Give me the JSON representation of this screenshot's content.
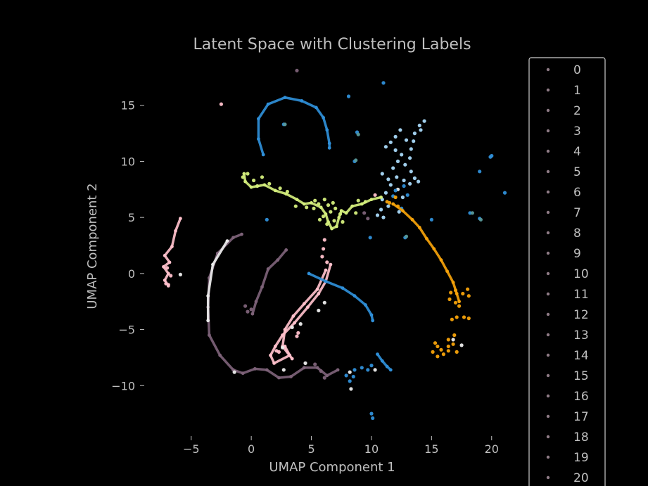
{
  "colors": {
    "background": "#000000",
    "text": "#bfbfbf",
    "axis": "#bfbfbf",
    "legend_border": "#cccccc",
    "legend_marker": "#8f7b86",
    "cluster_pink": "#ffc0cb",
    "cluster_mauve": "#7d6278",
    "cluster_blue": "#2f8fd8",
    "cluster_lightblue": "#a8d8f8",
    "cluster_lime": "#d4ee7c",
    "cluster_orange": "#f5a20a",
    "cluster_white": "#ececec",
    "cluster_teal": "#5a9a9a"
  },
  "chart_data": {
    "type": "scatter",
    "title": "Latent Space with Clustering Labels",
    "xlabel": "UMAP Component 1",
    "ylabel": "UMAP Component 2",
    "xlim": [
      -9.2,
      23
    ],
    "ylim": [
      -14.5,
      19.5
    ],
    "xticks": [
      -5,
      0,
      5,
      10,
      15,
      20
    ],
    "yticks": [
      -10,
      -5,
      0,
      5,
      10,
      15
    ],
    "xtick_labels": [
      "−5",
      "0",
      "5",
      "10",
      "15",
      "20"
    ],
    "ytick_labels": [
      "−10",
      "−5",
      "0",
      "5",
      "10",
      "15"
    ],
    "grid": false,
    "legend_position": "right",
    "legend": [
      "0",
      "1",
      "2",
      "3",
      "4",
      "5",
      "6",
      "7",
      "8",
      "9",
      "10",
      "11",
      "12",
      "13",
      "14",
      "15",
      "16",
      "17",
      "18",
      "19",
      "20"
    ],
    "series": [
      {
        "color": "cluster_pink",
        "kind": "curve",
        "points": [
          [
            -5.9,
            4.9
          ],
          [
            -6.3,
            3.8
          ],
          [
            -6.6,
            2.4
          ],
          [
            -7.2,
            1.6
          ],
          [
            -6.8,
            1.0
          ],
          [
            -7.3,
            0.6
          ],
          [
            -6.9,
            0.0
          ],
          [
            -7.2,
            -0.6
          ],
          [
            -6.9,
            -1.1
          ]
        ]
      },
      {
        "color": "cluster_pink",
        "kind": "dots",
        "points": [
          [
            -2.5,
            15.1
          ],
          [
            -7.0,
            0.5
          ],
          [
            -6.7,
            -0.2
          ],
          [
            -7.1,
            -0.9
          ],
          [
            -6.9,
            -1.0
          ]
        ]
      },
      {
        "color": "cluster_pink",
        "kind": "curve",
        "points": [
          [
            6.6,
            0.8
          ],
          [
            6.2,
            -0.7
          ],
          [
            5.6,
            -1.8
          ],
          [
            4.7,
            -3.0
          ],
          [
            3.6,
            -4.4
          ],
          [
            2.6,
            -5.5
          ],
          [
            2.0,
            -6.5
          ],
          [
            1.6,
            -7.3
          ],
          [
            1.9,
            -8.0
          ],
          [
            3.2,
            -7.3
          ],
          [
            2.8,
            -6.5
          ]
        ]
      },
      {
        "color": "cluster_pink",
        "kind": "curve",
        "points": [
          [
            6.2,
            0.3
          ],
          [
            5.5,
            -1.4
          ],
          [
            4.4,
            -2.7
          ],
          [
            3.5,
            -3.8
          ],
          [
            2.8,
            -5.0
          ],
          [
            2.6,
            -6.5
          ],
          [
            3.4,
            -7.6
          ]
        ]
      },
      {
        "color": "cluster_pink",
        "kind": "dots",
        "points": [
          [
            6.1,
            3.0
          ],
          [
            6.0,
            2.2
          ],
          [
            5.9,
            1.5
          ],
          [
            3.8,
            -5.6
          ],
          [
            3.9,
            -5.3
          ],
          [
            2.1,
            -6.9
          ],
          [
            2.3,
            -7.0
          ],
          [
            6.3,
            1.0
          ],
          [
            10.3,
            7.0
          ]
        ]
      },
      {
        "color": "cluster_mauve",
        "kind": "curve",
        "points": [
          [
            -0.8,
            3.5
          ],
          [
            -1.5,
            3.2
          ],
          [
            -2.8,
            1.8
          ],
          [
            -3.5,
            -0.4
          ],
          [
            -3.6,
            -3.0
          ],
          [
            -3.5,
            -5.5
          ],
          [
            -2.6,
            -7.3
          ],
          [
            -1.5,
            -8.6
          ],
          [
            -0.7,
            -8.9
          ],
          [
            0.3,
            -8.5
          ],
          [
            1.3,
            -8.6
          ],
          [
            2.3,
            -9.3
          ],
          [
            3.3,
            -9.2
          ],
          [
            4.4,
            -8.4
          ],
          [
            5.5,
            -8.4
          ],
          [
            6.3,
            -9.1
          ],
          [
            7.2,
            -8.6
          ]
        ]
      },
      {
        "color": "cluster_mauve",
        "kind": "curve",
        "points": [
          [
            2.9,
            2.1
          ],
          [
            2.2,
            1.2
          ],
          [
            1.4,
            0.4
          ],
          [
            0.9,
            -1.2
          ],
          [
            0.4,
            -2.5
          ],
          [
            0.1,
            -3.6
          ]
        ]
      },
      {
        "color": "cluster_mauve",
        "kind": "dots",
        "points": [
          [
            -0.5,
            -2.9
          ],
          [
            0.0,
            -3.2
          ],
          [
            -0.3,
            -3.4
          ],
          [
            3.8,
            18.1
          ],
          [
            9.4,
            5.4
          ],
          [
            9.7,
            4.9
          ],
          [
            5.8,
            -8.7
          ],
          [
            6.1,
            -9.3
          ],
          [
            5.3,
            -8.1
          ]
        ]
      },
      {
        "color": "cluster_white",
        "kind": "curve",
        "points": [
          [
            -2.0,
            2.9
          ],
          [
            -3.2,
            0.8
          ],
          [
            -3.6,
            -2.0
          ],
          [
            -3.6,
            -4.2
          ]
        ]
      },
      {
        "color": "cluster_white",
        "kind": "dots",
        "points": [
          [
            6.1,
            -2.6
          ],
          [
            5.6,
            -3.3
          ],
          [
            4.1,
            -4.5
          ],
          [
            3.4,
            -4.8
          ],
          [
            2.6,
            -6.6
          ],
          [
            2.7,
            -8.6
          ],
          [
            -1.4,
            -8.8
          ],
          [
            4.5,
            -8.0
          ],
          [
            8.2,
            -8.8
          ],
          [
            8.3,
            -10.3
          ],
          [
            10.3,
            -8.6
          ],
          [
            16.8,
            -5.9
          ],
          [
            17.5,
            -6.4
          ],
          [
            12.2,
            7.5
          ],
          [
            -5.9,
            -0.1
          ]
        ]
      },
      {
        "color": "cluster_blue",
        "kind": "curve",
        "points": [
          [
            1.0,
            10.6
          ],
          [
            0.6,
            12.0
          ],
          [
            0.6,
            13.8
          ],
          [
            1.4,
            15.1
          ],
          [
            2.8,
            15.7
          ],
          [
            4.2,
            15.4
          ],
          [
            5.4,
            14.8
          ],
          [
            6.0,
            13.9
          ],
          [
            6.3,
            12.8
          ],
          [
            6.5,
            11.6
          ],
          [
            6.5,
            11.2
          ]
        ]
      },
      {
        "color": "cluster_blue",
        "kind": "curve",
        "points": [
          [
            4.8,
            0.0
          ],
          [
            6.2,
            -0.7
          ],
          [
            7.6,
            -1.3
          ],
          [
            8.6,
            -2.0
          ],
          [
            9.5,
            -2.8
          ],
          [
            10.0,
            -3.7
          ],
          [
            10.1,
            -4.2
          ]
        ]
      },
      {
        "color": "cluster_blue",
        "kind": "curve",
        "points": [
          [
            10.5,
            -7.2
          ],
          [
            10.9,
            -7.8
          ],
          [
            11.3,
            -8.3
          ],
          [
            11.6,
            -8.6
          ]
        ]
      },
      {
        "color": "cluster_blue",
        "kind": "dots",
        "points": [
          [
            7.9,
            -9.1
          ],
          [
            8.2,
            -9.6
          ],
          [
            8.5,
            -9.2
          ],
          [
            8.6,
            -8.6
          ],
          [
            9.2,
            -8.4
          ],
          [
            9.7,
            -8.6
          ],
          [
            10.0,
            -8.2
          ],
          [
            10.0,
            -12.5
          ],
          [
            10.1,
            -12.9
          ],
          [
            1.3,
            4.8
          ],
          [
            2.7,
            13.3
          ],
          [
            8.1,
            15.8
          ],
          [
            11.0,
            17.0
          ],
          [
            8.8,
            12.6
          ],
          [
            9.9,
            3.2
          ],
          [
            12.7,
            7.8
          ],
          [
            12.0,
            7.4
          ],
          [
            12.5,
            5.8
          ],
          [
            13.0,
            7.0
          ],
          [
            15.0,
            4.8
          ],
          [
            18.2,
            5.4
          ],
          [
            19.0,
            4.9
          ],
          [
            19.0,
            9.1
          ],
          [
            19.9,
            10.4
          ],
          [
            20.0,
            10.5
          ],
          [
            21.1,
            7.2
          ],
          [
            8.6,
            10.0
          ],
          [
            11.8,
            6.9
          ],
          [
            12.8,
            3.2
          ]
        ]
      },
      {
        "color": "cluster_lightblue",
        "kind": "dots",
        "points": [
          [
            11.6,
            11.7
          ],
          [
            11.2,
            11.3
          ],
          [
            12.0,
            11.0
          ],
          [
            12.5,
            10.6
          ],
          [
            12.2,
            10.0
          ],
          [
            12.8,
            9.7
          ],
          [
            13.2,
            10.3
          ],
          [
            13.3,
            11.1
          ],
          [
            12.9,
            11.9
          ],
          [
            13.6,
            12.5
          ],
          [
            14.0,
            13.2
          ],
          [
            14.1,
            12.8
          ],
          [
            13.5,
            11.8
          ],
          [
            11.8,
            9.4
          ],
          [
            12.1,
            8.6
          ],
          [
            12.7,
            8.3
          ],
          [
            13.2,
            8.0
          ],
          [
            13.6,
            8.5
          ],
          [
            13.3,
            9.1
          ],
          [
            11.6,
            7.9
          ],
          [
            11.2,
            7.2
          ],
          [
            10.9,
            6.6
          ],
          [
            11.4,
            6.0
          ],
          [
            10.8,
            5.7
          ],
          [
            10.5,
            5.2
          ],
          [
            11.0,
            5.0
          ],
          [
            12.3,
            5.5
          ],
          [
            12.6,
            6.8
          ],
          [
            12.0,
            12.2
          ],
          [
            12.4,
            12.8
          ],
          [
            14.4,
            13.6
          ],
          [
            11.4,
            8.4
          ],
          [
            10.9,
            8.9
          ],
          [
            13.9,
            8.2
          ]
        ]
      },
      {
        "color": "cluster_lime",
        "kind": "curve",
        "points": [
          [
            -0.6,
            8.9
          ],
          [
            -0.5,
            8.2
          ],
          [
            0.0,
            7.7
          ],
          [
            1.1,
            7.9
          ],
          [
            2.0,
            7.4
          ],
          [
            2.9,
            7.1
          ],
          [
            3.8,
            6.6
          ],
          [
            4.4,
            6.2
          ],
          [
            5.0,
            6.3
          ],
          [
            5.8,
            5.9
          ],
          [
            6.2,
            5.3
          ],
          [
            6.4,
            4.6
          ],
          [
            6.7,
            4.0
          ],
          [
            7.1,
            4.2
          ],
          [
            7.3,
            5.0
          ],
          [
            7.5,
            5.6
          ],
          [
            7.9,
            5.4
          ],
          [
            8.4,
            6.0
          ],
          [
            9.2,
            6.2
          ],
          [
            10.0,
            6.6
          ],
          [
            10.8,
            6.8
          ]
        ]
      },
      {
        "color": "cluster_lime",
        "kind": "dots",
        "points": [
          [
            -0.7,
            8.6
          ],
          [
            -0.3,
            8.9
          ],
          [
            0.2,
            8.3
          ],
          [
            0.9,
            8.6
          ],
          [
            1.5,
            8.0
          ],
          [
            2.4,
            7.6
          ],
          [
            3.0,
            7.3
          ],
          [
            5.2,
            5.8
          ],
          [
            5.6,
            6.2
          ],
          [
            6.1,
            6.6
          ],
          [
            6.4,
            6.1
          ],
          [
            6.0,
            5.1
          ],
          [
            5.7,
            4.8
          ],
          [
            6.3,
            4.4
          ],
          [
            6.9,
            4.7
          ],
          [
            7.4,
            5.3
          ],
          [
            7.0,
            5.8
          ],
          [
            6.8,
            6.3
          ],
          [
            8.9,
            6.5
          ],
          [
            9.5,
            6.4
          ],
          [
            8.7,
            5.4
          ],
          [
            4.6,
            5.9
          ],
          [
            5.3,
            6.5
          ],
          [
            6.6,
            5.5
          ],
          [
            7.6,
            4.6
          ],
          [
            3.7,
            6.0
          ],
          [
            0.5,
            7.8
          ]
        ]
      },
      {
        "color": "cluster_orange",
        "kind": "curve",
        "points": [
          [
            11.8,
            6.2
          ],
          [
            12.6,
            5.6
          ],
          [
            13.4,
            4.8
          ],
          [
            14.0,
            4.1
          ],
          [
            14.6,
            3.1
          ],
          [
            15.2,
            2.2
          ],
          [
            15.8,
            1.2
          ],
          [
            16.3,
            0.2
          ],
          [
            16.8,
            -0.8
          ],
          [
            17.1,
            -1.8
          ],
          [
            17.3,
            -2.5
          ]
        ]
      },
      {
        "color": "cluster_orange",
        "kind": "dots",
        "points": [
          [
            16.6,
            -1.7
          ],
          [
            17.0,
            -1.5
          ],
          [
            17.6,
            -1.8
          ],
          [
            18.1,
            -2.0
          ],
          [
            16.5,
            -2.3
          ],
          [
            17.0,
            -2.6
          ],
          [
            17.3,
            -2.9
          ],
          [
            18.0,
            -1.4
          ],
          [
            16.7,
            -4.1
          ],
          [
            17.1,
            -3.9
          ],
          [
            17.7,
            -3.9
          ],
          [
            18.1,
            -4.0
          ],
          [
            16.9,
            -5.5
          ],
          [
            16.4,
            -5.9
          ],
          [
            16.8,
            -6.3
          ],
          [
            15.5,
            -6.5
          ],
          [
            15.1,
            -7.0
          ],
          [
            15.5,
            -7.4
          ],
          [
            16.0,
            -7.2
          ],
          [
            16.4,
            -6.9
          ],
          [
            15.8,
            -6.8
          ],
          [
            15.3,
            -6.2
          ],
          [
            16.4,
            -6.5
          ],
          [
            17.1,
            -7.0
          ],
          [
            12.0,
            6.8
          ],
          [
            11.5,
            6.3
          ],
          [
            11.3,
            6.4
          ],
          [
            12.2,
            6.0
          ]
        ]
      },
      {
        "color": "cluster_teal",
        "kind": "dots",
        "points": [
          [
            12.9,
            3.3
          ],
          [
            18.4,
            5.4
          ],
          [
            19.1,
            4.8
          ],
          [
            2.8,
            13.3
          ],
          [
            8.7,
            10.1
          ],
          [
            8.9,
            12.4
          ]
        ]
      }
    ]
  }
}
